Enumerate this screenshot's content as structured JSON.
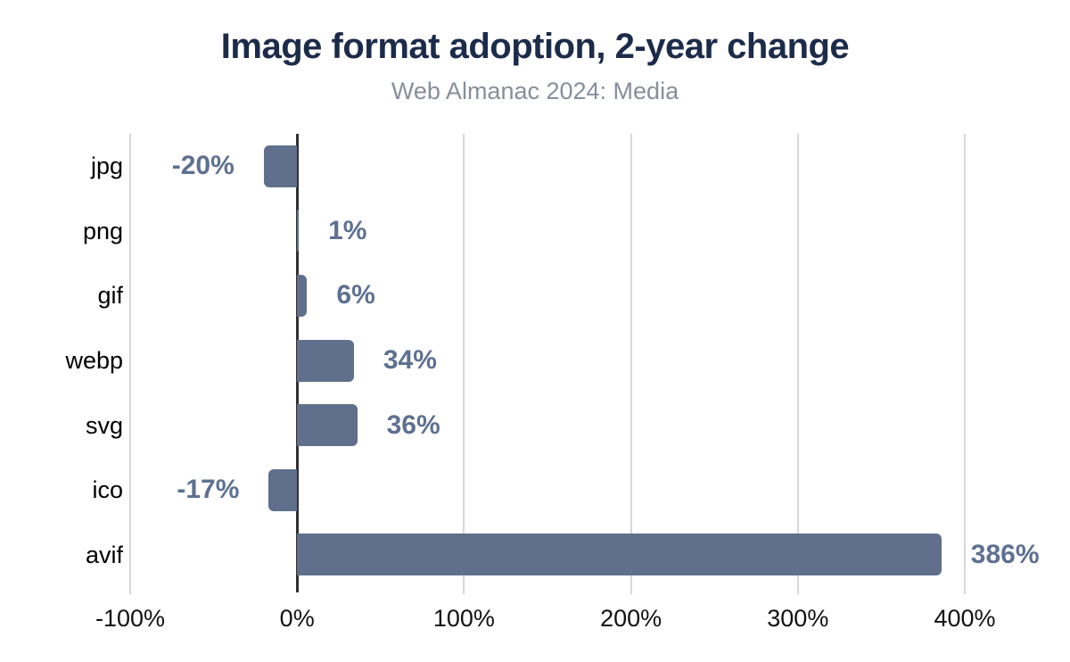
{
  "chart_data": {
    "type": "bar",
    "orientation": "horizontal",
    "title": "Image format adoption, 2-year change",
    "subtitle": "Web Almanac 2024: Media",
    "categories": [
      "jpg",
      "png",
      "gif",
      "webp",
      "svg",
      "ico",
      "avif"
    ],
    "values": [
      -20,
      1,
      6,
      34,
      36,
      -17,
      386
    ],
    "value_labels": [
      "-20%",
      "1%",
      "6%",
      "34%",
      "36%",
      "-17%",
      "386%"
    ],
    "xlabel": "",
    "ylabel": "",
    "xlim": [
      -100,
      400
    ],
    "x_ticks": [
      -100,
      0,
      100,
      200,
      300,
      400
    ],
    "x_tick_labels": [
      "-100%",
      "0%",
      "100%",
      "200%",
      "300%",
      "400%"
    ],
    "grid": "vertical-gridlines-on",
    "legend": "none",
    "colors": {
      "bar": "#5f6f8c",
      "value_label": "#5e7090",
      "title": "#1c2b4a",
      "subtitle": "#878e9a",
      "gridline": "#d8d8d8",
      "zero_line": "#313131",
      "category_label": "#000000",
      "tick_label": "#111111",
      "background": "#ffffff"
    }
  }
}
